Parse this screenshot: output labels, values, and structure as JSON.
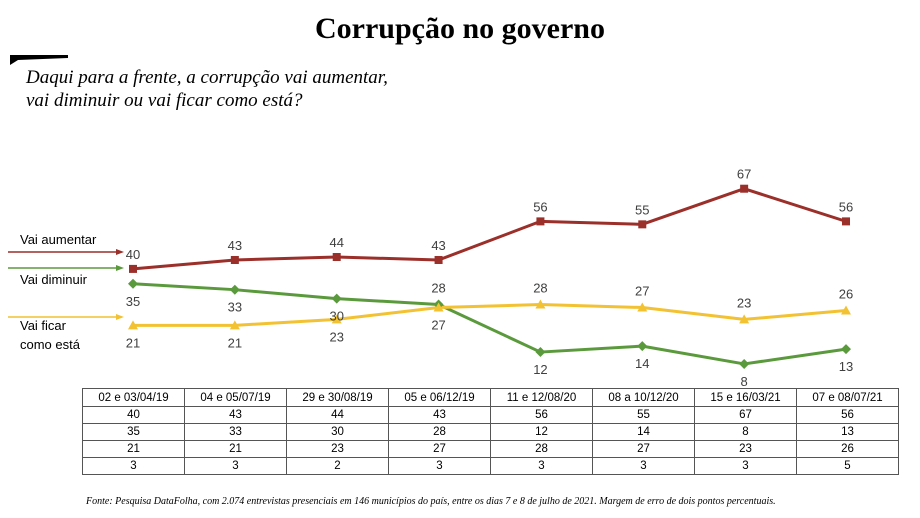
{
  "page": {
    "title": "Corrupção no governo",
    "question_line1": "Daqui para a frente, a corrupção vai aumentar,",
    "question_line2": "vai diminuir ou vai ficar como está?",
    "source": "Fonte: Pesquisa DataFolha, com 2.074 entrevistas presenciais em 146 municípios do país, entre os dias 7 e 8 de julho de 2021. Margem de erro de dois pontos percentuais."
  },
  "chart_data": {
    "type": "line",
    "title": "Corrupção no governo",
    "x": [
      "02 e 03/04/19",
      "04 e 05/07/19",
      "29 e 30/08/19",
      "05 e 06/12/19",
      "11 e 12/08/20",
      "08 a 10/12/20",
      "15 e 16/03/21",
      "07 e 08/07/21"
    ],
    "series": [
      {
        "name": "Vai aumentar",
        "values": [
          40,
          43,
          44,
          43,
          56,
          55,
          67,
          56
        ],
        "color": "#9b2f2a",
        "marker": "square"
      },
      {
        "name": "Vai diminuir",
        "values": [
          35,
          33,
          30,
          28,
          12,
          14,
          8,
          13
        ],
        "color": "#5a9a3c",
        "marker": "diamond"
      },
      {
        "name": "Vai ficar como está",
        "label_lines": [
          "Vai ficar",
          "como está"
        ],
        "values": [
          21,
          21,
          23,
          27,
          28,
          27,
          23,
          26
        ],
        "color": "#f2c232",
        "marker": "triangle"
      }
    ],
    "table_extra_row": [
      3,
      3,
      2,
      3,
      3,
      3,
      3,
      5
    ],
    "grid": false,
    "legend": "left"
  }
}
